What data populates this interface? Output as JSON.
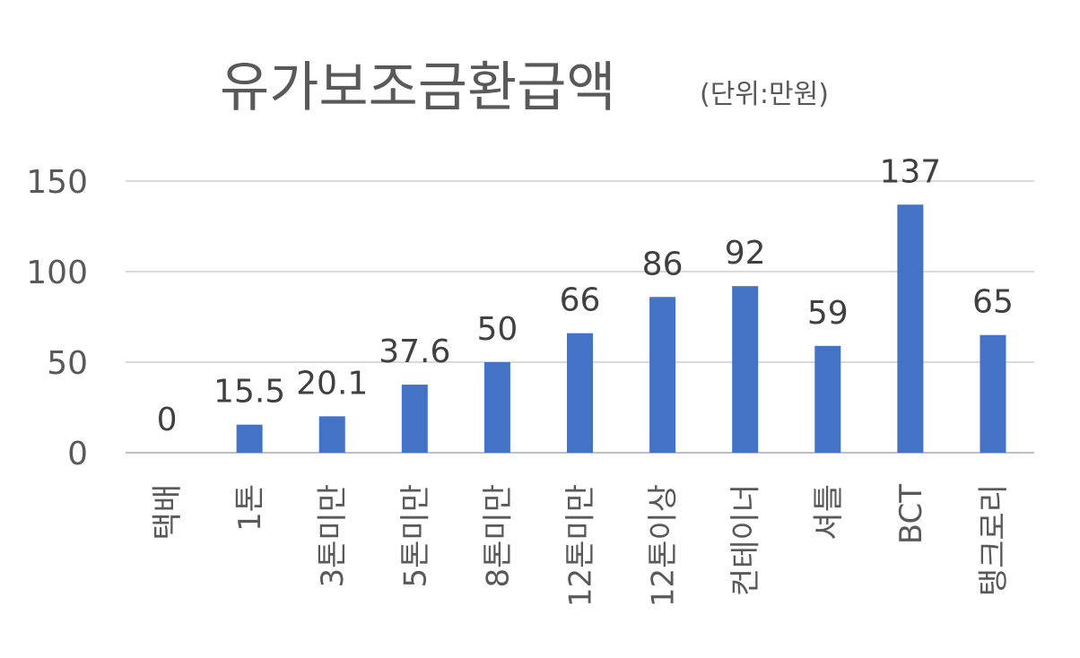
{
  "chart_data": {
    "type": "bar",
    "title": "유가보조금환급액",
    "subtitle": "(단위:만원)",
    "categories": [
      "택배",
      "1톤",
      "3톤미만",
      "5톤미만",
      "8톤미만",
      "12톤미만",
      "12톤이상",
      "컨테이너",
      "셔틀",
      "BCT",
      "탱크로리"
    ],
    "values": [
      0,
      15.5,
      20.1,
      37.6,
      50,
      66,
      86,
      92,
      59,
      137,
      65
    ],
    "data_labels": [
      "0",
      "15.5",
      "20.1",
      "37.6",
      "50",
      "66",
      "86",
      "92",
      "59",
      "137",
      "65"
    ],
    "y_ticks": [
      "0",
      "50",
      "100",
      "150"
    ],
    "ylim": [
      0,
      150
    ],
    "grid": true,
    "legend": "none",
    "bar_color": "#4472c4"
  }
}
